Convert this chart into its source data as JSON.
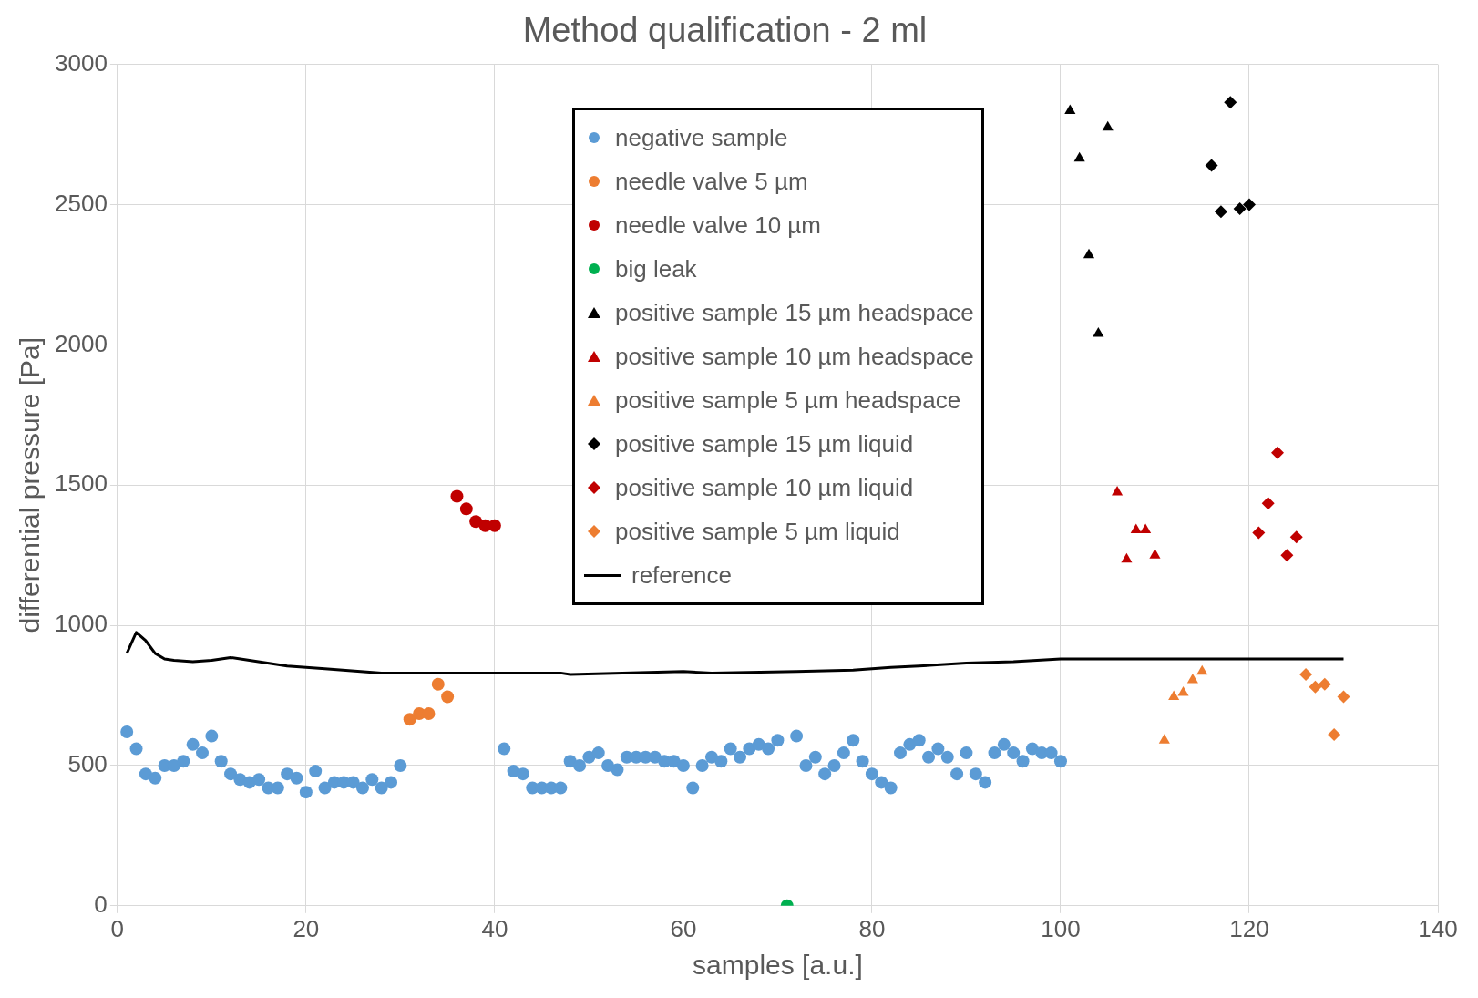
{
  "chart_data": {
    "type": "scatter",
    "title": "Method qualification - 2 ml",
    "xlabel": "samples [a.u.]",
    "ylabel": "differential pressure [Pa]",
    "xlim": [
      0,
      140
    ],
    "xticks": [
      0,
      20,
      40,
      60,
      80,
      100,
      120,
      140
    ],
    "ylim": [
      0,
      3000
    ],
    "yticks": [
      0,
      500,
      1000,
      1500,
      2000,
      2500,
      3000
    ],
    "grid": true,
    "legend": "top",
    "series": [
      {
        "name": "negative sample",
        "color": "#5b9bd5",
        "marker": "circle",
        "x": [
          1,
          2,
          3,
          4,
          5,
          6,
          7,
          8,
          9,
          10,
          11,
          12,
          13,
          14,
          15,
          16,
          17,
          18,
          19,
          20,
          21,
          22,
          23,
          24,
          25,
          26,
          27,
          28,
          29,
          30,
          41,
          42,
          43,
          44,
          45,
          46,
          47,
          48,
          49,
          50,
          51,
          52,
          53,
          54,
          55,
          56,
          57,
          58,
          59,
          60,
          61,
          62,
          63,
          64,
          65,
          66,
          67,
          68,
          69,
          70,
          72,
          73,
          74,
          75,
          76,
          77,
          78,
          79,
          80,
          81,
          82,
          83,
          84,
          85,
          86,
          87,
          88,
          89,
          90,
          91,
          92,
          93,
          94,
          95,
          96,
          97,
          98,
          99,
          100
        ],
        "values": [
          620,
          560,
          470,
          455,
          500,
          500,
          515,
          575,
          545,
          605,
          515,
          470,
          450,
          440,
          450,
          420,
          420,
          470,
          455,
          405,
          480,
          420,
          440,
          440,
          440,
          420,
          450,
          420,
          440,
          500,
          560,
          480,
          470,
          420,
          420,
          420,
          420,
          515,
          500,
          530,
          545,
          500,
          485,
          530,
          530,
          530,
          530,
          515,
          515,
          500,
          420,
          500,
          530,
          515,
          560,
          530,
          560,
          575,
          560,
          590,
          605,
          500,
          530,
          470,
          500,
          545,
          590,
          515,
          470,
          440,
          420,
          545,
          575,
          590,
          530,
          560,
          530,
          470,
          545,
          470,
          440,
          545,
          575,
          545,
          515,
          560,
          545,
          545,
          515
        ]
      },
      {
        "name": "needle valve 5 µm",
        "color": "#ed7d31",
        "marker": "circle",
        "x": [
          31,
          32,
          33,
          34,
          35
        ],
        "values": [
          665,
          685,
          685,
          790,
          745
        ]
      },
      {
        "name": "needle valve 10 µm",
        "color": "#c00000",
        "marker": "circle",
        "x": [
          36,
          37,
          38,
          39,
          40
        ],
        "values": [
          1460,
          1415,
          1370,
          1355,
          1355
        ]
      },
      {
        "name": "big leak",
        "color": "#00b050",
        "marker": "circle",
        "x": [
          71
        ],
        "values": [
          0
        ]
      },
      {
        "name": "positive sample 15 µm headspace",
        "color": "#000000",
        "marker": "triangle",
        "x": [
          101,
          102,
          103,
          104,
          105
        ],
        "values": [
          2835,
          2665,
          2320,
          2040,
          2775
        ]
      },
      {
        "name": "positive sample 10 µm headspace",
        "color": "#c00000",
        "marker": "triangle",
        "x": [
          106,
          107,
          108,
          109,
          110
        ],
        "values": [
          1475,
          1235,
          1340,
          1340,
          1250
        ]
      },
      {
        "name": "positive sample 5 µm headspace",
        "color": "#ed7d31",
        "marker": "triangle",
        "x": [
          111,
          112,
          113,
          114,
          115
        ],
        "values": [
          590,
          745,
          760,
          805,
          835
        ]
      },
      {
        "name": "positive sample 15 µm liquid",
        "color": "#000000",
        "marker": "diamond",
        "x": [
          116,
          117,
          118,
          119,
          120
        ],
        "values": [
          2640,
          2475,
          2865,
          2485,
          2500
        ]
      },
      {
        "name": "positive sample 10 µm liquid",
        "color": "#c00000",
        "marker": "diamond",
        "x": [
          121,
          122,
          123,
          124,
          125
        ],
        "values": [
          1330,
          1435,
          1615,
          1250,
          1315
        ]
      },
      {
        "name": "positive sample 5 µm liquid",
        "color": "#ed7d31",
        "marker": "diamond",
        "x": [
          126,
          127,
          128,
          129,
          130
        ],
        "values": [
          825,
          780,
          790,
          610,
          745
        ]
      },
      {
        "name": "reference",
        "type": "line",
        "color": "#000000",
        "marker": "none",
        "line_style": "solid",
        "x": [
          1,
          2,
          3,
          4,
          5,
          6,
          8,
          10,
          12,
          14,
          18,
          22,
          28,
          47,
          48,
          60,
          63,
          72,
          78,
          82,
          85,
          90,
          95,
          100,
          130
        ],
        "values": [
          900,
          975,
          945,
          900,
          880,
          875,
          870,
          875,
          885,
          875,
          855,
          845,
          830,
          830,
          825,
          835,
          830,
          835,
          840,
          850,
          855,
          865,
          870,
          880,
          880
        ]
      }
    ]
  }
}
